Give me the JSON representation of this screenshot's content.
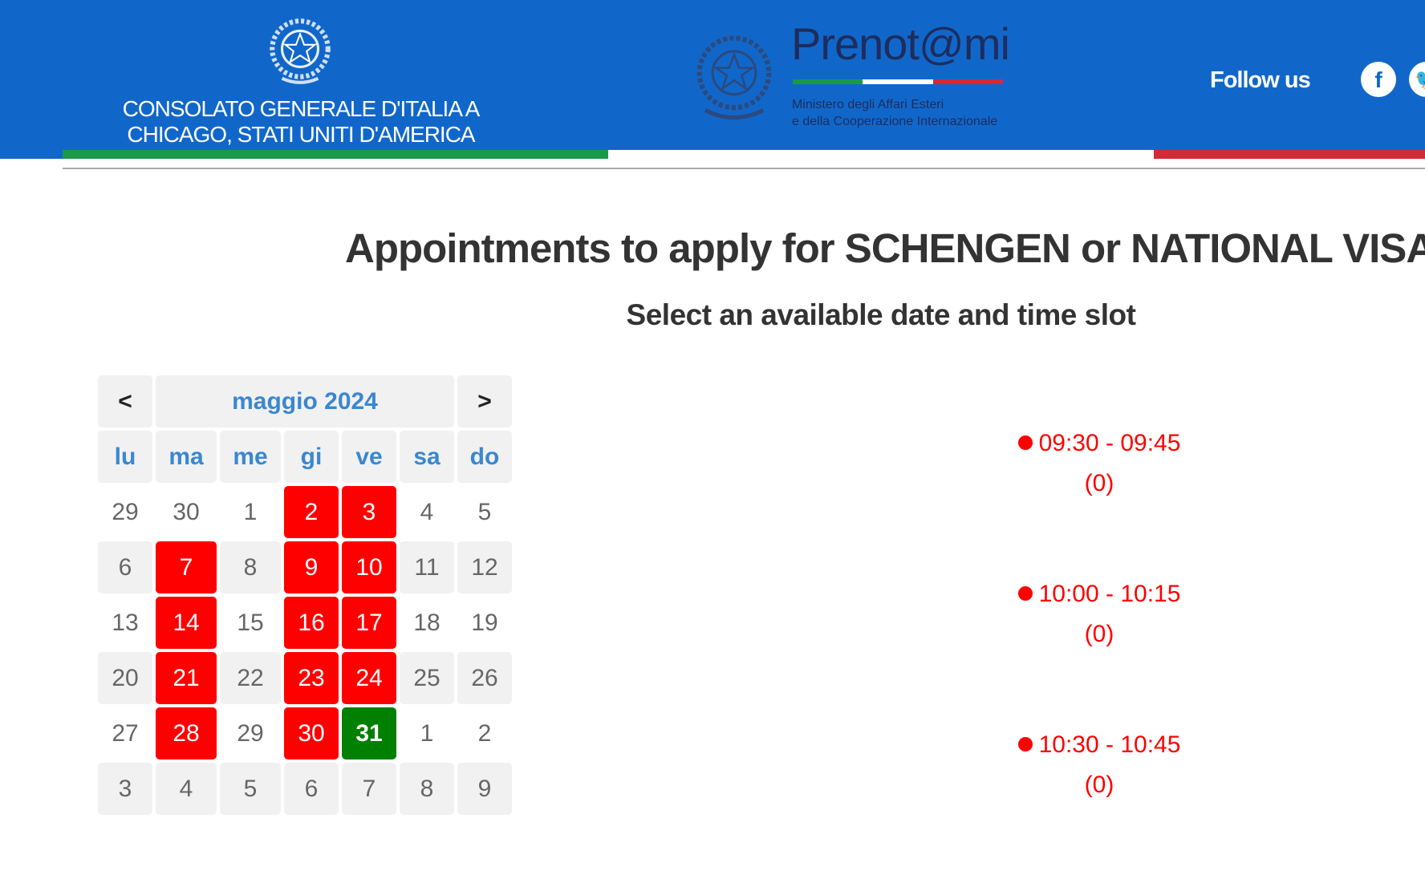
{
  "header": {
    "consulate_line1": "CONSOLATO GENERALE D'ITALIA A",
    "consulate_line2": "CHICAGO, STATI UNITI D'AMERICA",
    "logo_text": "Prenot@mi",
    "ministry_line1": "Ministero degli Affari Esteri",
    "ministry_line2": "e della Cooperazione Internazionale",
    "follow_us": "Follow us",
    "social_icons": [
      "facebook-icon",
      "twitter-icon"
    ],
    "colors": {
      "bar": "#1167c9",
      "green": "#1a9a47",
      "red": "#d22b35"
    }
  },
  "main": {
    "title": "Appointments to apply for SCHENGEN or NATIONAL VISAS",
    "subtitle": "Select an available date and time slot"
  },
  "calendar": {
    "prev": "<",
    "next": ">",
    "month": "maggio 2024",
    "weekdays": [
      "lu",
      "ma",
      "me",
      "gi",
      "ve",
      "sa",
      "do"
    ],
    "weeks": [
      [
        {
          "d": "29",
          "s": "n"
        },
        {
          "d": "30",
          "s": "n"
        },
        {
          "d": "1",
          "s": "n"
        },
        {
          "d": "2",
          "s": "full"
        },
        {
          "d": "3",
          "s": "full"
        },
        {
          "d": "4",
          "s": "n"
        },
        {
          "d": "5",
          "s": "n"
        }
      ],
      [
        {
          "d": "6",
          "s": "g"
        },
        {
          "d": "7",
          "s": "full"
        },
        {
          "d": "8",
          "s": "g"
        },
        {
          "d": "9",
          "s": "full"
        },
        {
          "d": "10",
          "s": "full"
        },
        {
          "d": "11",
          "s": "g"
        },
        {
          "d": "12",
          "s": "g"
        }
      ],
      [
        {
          "d": "13",
          "s": "n"
        },
        {
          "d": "14",
          "s": "full"
        },
        {
          "d": "15",
          "s": "n"
        },
        {
          "d": "16",
          "s": "full"
        },
        {
          "d": "17",
          "s": "full"
        },
        {
          "d": "18",
          "s": "n"
        },
        {
          "d": "19",
          "s": "n"
        }
      ],
      [
        {
          "d": "20",
          "s": "g"
        },
        {
          "d": "21",
          "s": "full"
        },
        {
          "d": "22",
          "s": "g"
        },
        {
          "d": "23",
          "s": "full"
        },
        {
          "d": "24",
          "s": "full"
        },
        {
          "d": "25",
          "s": "g"
        },
        {
          "d": "26",
          "s": "g"
        }
      ],
      [
        {
          "d": "27",
          "s": "n"
        },
        {
          "d": "28",
          "s": "full"
        },
        {
          "d": "29",
          "s": "n"
        },
        {
          "d": "30",
          "s": "full"
        },
        {
          "d": "31",
          "s": "selected"
        },
        {
          "d": "1",
          "s": "n"
        },
        {
          "d": "2",
          "s": "n"
        }
      ],
      [
        {
          "d": "3",
          "s": "g"
        },
        {
          "d": "4",
          "s": "g"
        },
        {
          "d": "5",
          "s": "g"
        },
        {
          "d": "6",
          "s": "g"
        },
        {
          "d": "7",
          "s": "g"
        },
        {
          "d": "8",
          "s": "g"
        },
        {
          "d": "9",
          "s": "g"
        }
      ]
    ],
    "colors": {
      "full": "#ff0000",
      "selected": "#008000"
    }
  },
  "slots": [
    {
      "time": "09:30 - 09:45",
      "count": "(0)"
    },
    {
      "time": "10:00 - 10:15",
      "count": "(0)"
    },
    {
      "time": "10:30 - 10:45",
      "count": "(0)"
    }
  ]
}
